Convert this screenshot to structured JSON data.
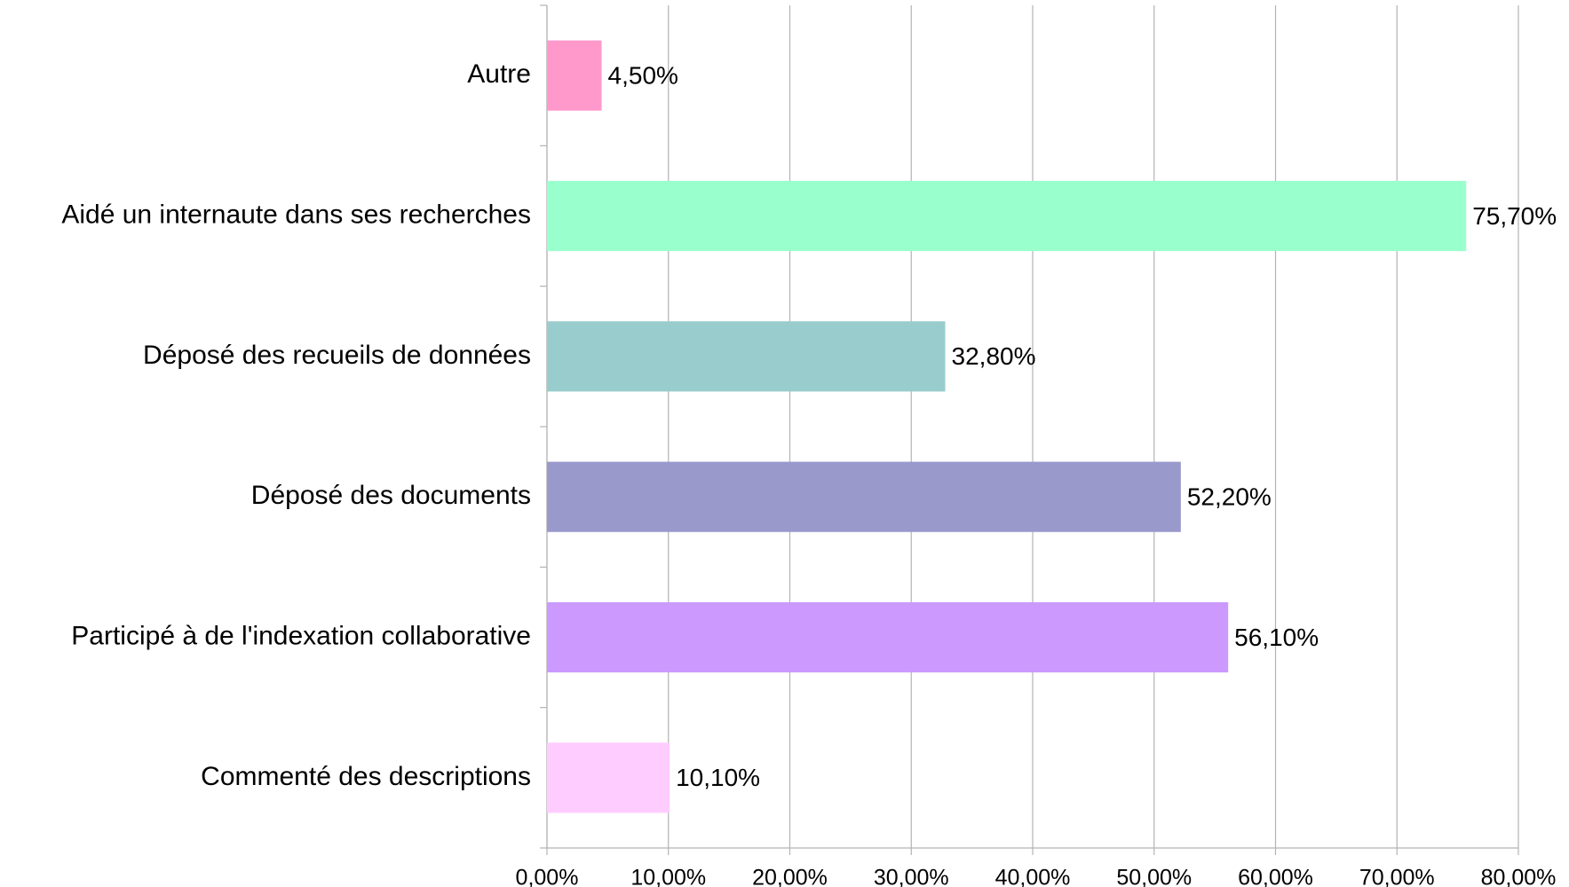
{
  "chart_data": {
    "type": "barh",
    "categories": [
      "Autre",
      "Aidé un internaute dans ses recherches",
      "Déposé des recueils de données",
      "Déposé des documents",
      "Participé à de l'indexation collaborative",
      "Commenté des descriptions"
    ],
    "values": [
      4.5,
      75.7,
      32.8,
      52.2,
      56.1,
      10.1
    ],
    "value_labels": [
      "4,50%",
      "75,70%",
      "32,80%",
      "52,20%",
      "56,10%",
      "10,10%"
    ],
    "colors": [
      "#ff99cc",
      "#99ffcc",
      "#99cccc",
      "#9999cc",
      "#cc99ff",
      "#ffccff"
    ],
    "xlim": [
      0,
      80
    ],
    "xticks": [
      {
        "value": 0,
        "label": "0,00%"
      },
      {
        "value": 10,
        "label": "10,00%"
      },
      {
        "value": 20,
        "label": "20,00%"
      },
      {
        "value": 30,
        "label": "30,00%"
      },
      {
        "value": 40,
        "label": "40,00%"
      },
      {
        "value": 50,
        "label": "50,00%"
      },
      {
        "value": 60,
        "label": "60,00%"
      },
      {
        "value": 70,
        "label": "70,00%"
      },
      {
        "value": 80,
        "label": "80,00%"
      }
    ],
    "grid": true
  }
}
